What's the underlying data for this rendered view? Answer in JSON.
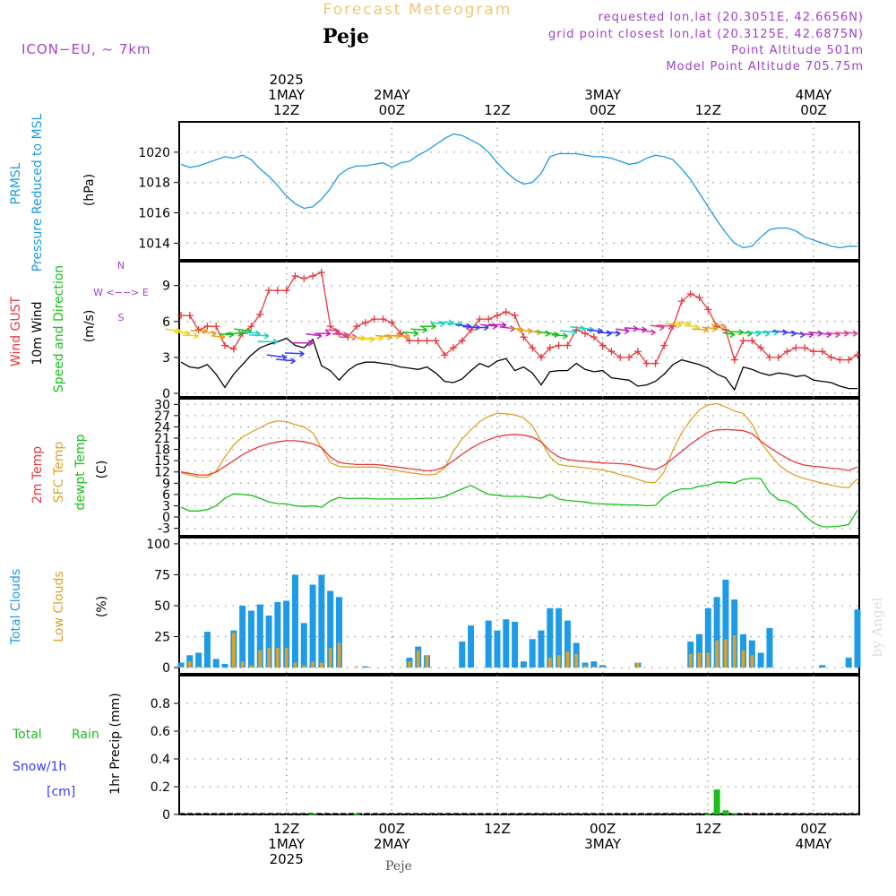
{
  "header": {
    "title": "Forecast Meteogram",
    "location": "Peje",
    "model": "ICON−EU, ~ 7km",
    "requested": "requested lon,lat (20.3051E, 42.6656N)",
    "grid_point": "grid point closest lon,lat (20.3125E, 42.6875N)",
    "point_altitude": "Point Altitude 501m",
    "model_altitude": "Model Point Altitude 705.75m",
    "footer_location": "Peje",
    "watermark": "by Angel"
  },
  "colors": {
    "pressure": "#1e9be6",
    "gust": "#e8383c",
    "wind": "#000000",
    "temp2m": "#e8383c",
    "sfc": "#e0a028",
    "dewpt": "#18c018",
    "total_clouds": "#1e9be6",
    "low_clouds": "#e0a028",
    "rain": "#18c018",
    "snow": "#3a3aff",
    "header_purple": "#a040d0",
    "header_orange": "#f0c870"
  },
  "time_axis": {
    "top_ticks": [
      {
        "hour": 12,
        "lines": [
          "2025",
          "1MAY",
          "12Z"
        ]
      },
      {
        "hour": 24,
        "lines": [
          "2MAY",
          "00Z"
        ]
      },
      {
        "hour": 36,
        "lines": [
          "12Z"
        ]
      },
      {
        "hour": 48,
        "lines": [
          "3MAY",
          "00Z"
        ]
      },
      {
        "hour": 60,
        "lines": [
          "12Z"
        ]
      },
      {
        "hour": 72,
        "lines": [
          "4MAY",
          "00Z"
        ]
      }
    ],
    "bottom_ticks": [
      {
        "hour": 12,
        "lines": [
          "12Z",
          "1MAY",
          "2025"
        ]
      },
      {
        "hour": 24,
        "lines": [
          "00Z",
          "2MAY"
        ]
      },
      {
        "hour": 36,
        "lines": [
          "12Z"
        ]
      },
      {
        "hour": 48,
        "lines": [
          "00Z",
          "3MAY"
        ]
      },
      {
        "hour": 60,
        "lines": [
          "12Z"
        ]
      },
      {
        "hour": 72,
        "lines": [
          "00Z",
          "4MAY"
        ]
      }
    ]
  },
  "panels": {
    "pressure": {
      "labels": [
        "PRMSL",
        "Pressure Reduced to MSL",
        "(hPa)"
      ],
      "ticks": [
        1014,
        1016,
        1018,
        1020
      ],
      "range": [
        1012.9,
        1022.0
      ]
    },
    "wind": {
      "labels": [
        "Wind GUST",
        "10m Wind",
        "Speed and Direction",
        "(m/s)"
      ],
      "compass": [
        "N",
        "W <−−> E",
        "S"
      ],
      "ticks": [
        0,
        3,
        6,
        9
      ],
      "range": [
        -0.3,
        11.0
      ]
    },
    "temp": {
      "labels": [
        "2m Temp",
        "SFC Temp",
        "dewpt Temp",
        "(C)"
      ],
      "ticks": [
        -3,
        0,
        3,
        6,
        9,
        12,
        15,
        18,
        21,
        24,
        27,
        30
      ],
      "range": [
        -5,
        31.5
      ]
    },
    "clouds": {
      "labels": [
        "Total Clouds",
        "Low Clouds",
        "(%)"
      ],
      "ticks": [
        0,
        25,
        50,
        75,
        100
      ],
      "range": [
        -5,
        105
      ]
    },
    "precip": {
      "labels": [
        "Total",
        "Rain",
        "Snow/1h",
        "[cm]",
        "1hr Precip (mm)"
      ],
      "ticks": [
        "0",
        "0.2",
        "0.4",
        "0.6",
        "0.8"
      ],
      "range": [
        0,
        1.0
      ]
    }
  },
  "chart_data": [
    {
      "type": "line",
      "title": "PRMSL Pressure Reduced to MSL",
      "ylabel": "hPa",
      "x_hours": [
        0,
        1,
        2,
        3,
        4,
        5,
        6,
        7,
        8,
        9,
        10,
        11,
        12,
        13,
        14,
        15,
        16,
        17,
        18,
        19,
        20,
        21,
        22,
        23,
        24,
        25,
        26,
        27,
        28,
        29,
        30,
        31,
        32,
        33,
        34,
        35,
        36,
        37,
        38,
        39,
        40,
        41,
        42,
        43,
        44,
        45,
        46,
        47,
        48,
        49,
        50,
        51,
        52,
        53,
        54,
        55,
        56,
        57,
        58,
        59,
        60,
        61,
        62,
        63,
        64,
        65,
        66,
        67,
        68,
        69,
        70,
        71,
        72,
        73,
        74,
        75,
        76,
        77
      ],
      "values": [
        1019.2,
        1019.0,
        1019.1,
        1019.3,
        1019.5,
        1019.7,
        1019.6,
        1019.8,
        1019.5,
        1018.9,
        1018.4,
        1017.8,
        1017.1,
        1016.6,
        1016.3,
        1016.4,
        1016.9,
        1017.6,
        1018.5,
        1018.9,
        1019.1,
        1019.1,
        1019.2,
        1019.3,
        1019.0,
        1019.3,
        1019.4,
        1019.8,
        1020.1,
        1020.5,
        1020.9,
        1021.2,
        1021.1,
        1020.8,
        1020.5,
        1020.0,
        1019.3,
        1018.7,
        1018.2,
        1017.9,
        1018.0,
        1018.6,
        1019.7,
        1019.9,
        1019.9,
        1019.9,
        1019.8,
        1019.7,
        1019.7,
        1019.6,
        1019.4,
        1019.2,
        1019.3,
        1019.6,
        1019.8,
        1019.7,
        1019.5,
        1018.9,
        1018.2,
        1017.3,
        1016.4,
        1015.5,
        1014.7,
        1014.0,
        1013.7,
        1013.8,
        1014.4,
        1014.9,
        1015.0,
        1015.0,
        1014.8,
        1014.4,
        1014.2,
        1014.0,
        1013.8,
        1013.7,
        1013.8,
        1013.8
      ]
    },
    {
      "type": "line",
      "title": "Wind GUST / 10m Wind Speed",
      "ylabel": "m/s",
      "x_hours": [
        0,
        1,
        2,
        3,
        4,
        5,
        6,
        7,
        8,
        9,
        10,
        11,
        12,
        13,
        14,
        15,
        16,
        17,
        18,
        19,
        20,
        21,
        22,
        23,
        24,
        25,
        26,
        27,
        28,
        29,
        30,
        31,
        32,
        33,
        34,
        35,
        36,
        37,
        38,
        39,
        40,
        41,
        42,
        43,
        44,
        45,
        46,
        47,
        48,
        49,
        50,
        51,
        52,
        53,
        54,
        55,
        56,
        57,
        58,
        59,
        60,
        61,
        62,
        63,
        64,
        65,
        66,
        67,
        68,
        69,
        70,
        71,
        72,
        73,
        74,
        75,
        76,
        77
      ],
      "series": [
        {
          "name": "Wind GUST",
          "values": [
            6.5,
            6.5,
            5.3,
            5.6,
            5.6,
            4.0,
            3.7,
            5.0,
            5.6,
            6.6,
            8.6,
            8.6,
            8.6,
            9.8,
            9.6,
            9.8,
            10.1,
            5.6,
            5.0,
            4.7,
            5.6,
            5.9,
            6.2,
            6.2,
            5.9,
            5.0,
            4.4,
            4.4,
            4.4,
            4.4,
            3.2,
            3.8,
            4.4,
            5.3,
            6.2,
            6.2,
            6.5,
            6.8,
            6.5,
            4.7,
            3.8,
            3.0,
            3.8,
            4.0,
            4.0,
            5.3,
            5.0,
            4.7,
            4.0,
            3.5,
            3.0,
            3.0,
            3.5,
            2.5,
            2.5,
            4.0,
            5.6,
            7.7,
            8.3,
            8.0,
            7.0,
            5.6,
            5.3,
            2.8,
            4.4,
            4.4,
            3.8,
            3.0,
            3.0,
            3.5,
            3.8,
            3.8,
            3.5,
            3.5,
            3.0,
            2.8,
            2.8,
            3.2
          ]
        },
        {
          "name": "10m Wind",
          "values": [
            2.6,
            2.2,
            2.1,
            2.4,
            1.6,
            0.5,
            1.6,
            2.4,
            3.2,
            3.8,
            4.1,
            4.3,
            4.6,
            4.0,
            3.8,
            4.5,
            2.3,
            1.9,
            1.1,
            1.9,
            2.4,
            2.6,
            2.6,
            2.5,
            2.4,
            2.2,
            2.1,
            2.0,
            2.2,
            1.7,
            1.0,
            0.9,
            1.2,
            1.9,
            2.5,
            2.2,
            2.7,
            2.9,
            1.9,
            2.2,
            1.7,
            0.7,
            1.8,
            1.9,
            1.9,
            2.5,
            2.0,
            1.8,
            1.9,
            1.3,
            1.2,
            1.1,
            0.6,
            0.7,
            1.0,
            1.6,
            2.4,
            2.8,
            2.6,
            2.4,
            2.1,
            1.6,
            1.3,
            0.3,
            2.2,
            2.0,
            1.7,
            1.5,
            1.7,
            1.6,
            1.4,
            1.5,
            1.1,
            1.0,
            0.9,
            0.6,
            0.4,
            0.4
          ]
        }
      ]
    },
    {
      "type": "line",
      "title": "2m Temp / SFC Temp / dewpt Temp",
      "ylabel": "C",
      "x_hours": [
        0,
        1,
        2,
        3,
        4,
        5,
        6,
        7,
        8,
        9,
        10,
        11,
        12,
        13,
        14,
        15,
        16,
        17,
        18,
        19,
        20,
        21,
        22,
        23,
        24,
        25,
        26,
        27,
        28,
        29,
        30,
        31,
        32,
        33,
        34,
        35,
        36,
        37,
        38,
        39,
        40,
        41,
        42,
        43,
        44,
        45,
        46,
        47,
        48,
        49,
        50,
        51,
        52,
        53,
        54,
        55,
        56,
        57,
        58,
        59,
        60,
        61,
        62,
        63,
        64,
        65,
        66,
        67,
        68,
        69,
        70,
        71,
        72,
        73,
        74,
        75,
        76,
        77
      ],
      "series": [
        {
          "name": "2m Temp",
          "values": [
            12.0,
            11.6,
            11.2,
            11.2,
            12.0,
            13.5,
            15.0,
            16.6,
            17.8,
            18.8,
            19.5,
            20.0,
            20.3,
            20.3,
            20.0,
            19.5,
            18.5,
            16.0,
            14.5,
            14.2,
            14.0,
            14.0,
            14.0,
            13.8,
            13.5,
            13.2,
            12.9,
            12.6,
            12.3,
            12.5,
            13.4,
            15.0,
            16.7,
            18.3,
            19.6,
            20.6,
            21.4,
            21.8,
            22.0,
            21.8,
            21.3,
            20.0,
            17.6,
            16.0,
            15.3,
            15.0,
            14.8,
            14.6,
            14.4,
            14.3,
            14.2,
            14.0,
            13.5,
            13.0,
            12.6,
            13.8,
            15.6,
            17.5,
            19.4,
            21.0,
            22.6,
            23.2,
            23.3,
            23.2,
            23.0,
            22.2,
            20.2,
            18.5,
            17.0,
            15.6,
            14.5,
            13.8,
            13.5,
            13.3,
            13.0,
            12.8,
            12.4,
            13.3
          ]
        },
        {
          "name": "SFC Temp",
          "values": [
            11.8,
            11.2,
            10.6,
            10.6,
            12.2,
            16.0,
            19.2,
            21.3,
            22.6,
            23.8,
            25.0,
            25.6,
            25.4,
            24.6,
            24.0,
            22.4,
            18.3,
            14.5,
            13.5,
            13.3,
            13.3,
            13.3,
            13.3,
            13.0,
            12.6,
            12.2,
            11.8,
            11.5,
            11.2,
            11.4,
            13.0,
            17.5,
            20.8,
            23.2,
            25.4,
            26.8,
            27.6,
            27.5,
            27.2,
            26.4,
            24.3,
            20.2,
            16.0,
            14.0,
            13.6,
            13.4,
            13.1,
            12.8,
            12.5,
            12.0,
            11.3,
            10.8,
            10.0,
            9.3,
            9.2,
            12.0,
            17.8,
            22.4,
            25.8,
            28.5,
            29.9,
            30.2,
            29.3,
            28.2,
            27.6,
            24.8,
            20.0,
            16.8,
            14.0,
            12.2,
            11.0,
            10.2,
            9.6,
            9.0,
            8.5,
            8.0,
            7.8,
            10.2
          ]
        },
        {
          "name": "dewpt Temp",
          "values": [
            2.6,
            1.6,
            1.6,
            2.0,
            3.0,
            5.0,
            6.2,
            6.0,
            5.8,
            5.0,
            4.0,
            3.6,
            3.5,
            3.0,
            2.8,
            3.0,
            2.6,
            4.3,
            5.2,
            4.9,
            5.0,
            5.0,
            4.8,
            4.8,
            4.8,
            4.8,
            4.8,
            4.9,
            5.0,
            5.0,
            5.4,
            6.5,
            7.5,
            8.4,
            7.2,
            6.0,
            5.8,
            5.5,
            5.5,
            5.5,
            5.2,
            5.0,
            6.0,
            4.8,
            4.4,
            4.2,
            4.0,
            3.6,
            3.5,
            3.4,
            3.3,
            3.2,
            3.2,
            3.0,
            3.1,
            5.4,
            6.8,
            7.5,
            7.5,
            8.2,
            8.5,
            9.3,
            9.3,
            9.0,
            10.0,
            10.3,
            10.2,
            6.5,
            4.6,
            4.2,
            2.8,
            0.4,
            -1.6,
            -2.6,
            -2.6,
            -2.4,
            -2.0,
            1.8
          ]
        }
      ]
    },
    {
      "type": "bar",
      "title": "Total Clouds / Low Clouds",
      "ylabel": "%",
      "x_hours": [
        0,
        1,
        2,
        3,
        4,
        5,
        6,
        7,
        8,
        9,
        10,
        11,
        12,
        13,
        14,
        15,
        16,
        17,
        18,
        19,
        20,
        21,
        22,
        23,
        24,
        25,
        26,
        27,
        28,
        29,
        30,
        31,
        32,
        33,
        34,
        35,
        36,
        37,
        38,
        39,
        40,
        41,
        42,
        43,
        44,
        45,
        46,
        47,
        48,
        49,
        50,
        51,
        52,
        53,
        54,
        55,
        56,
        57,
        58,
        59,
        60,
        61,
        62,
        63,
        64,
        65,
        66,
        67,
        68,
        69,
        70,
        71,
        72,
        73,
        74,
        75,
        76,
        77
      ],
      "series": [
        {
          "name": "Total Clouds",
          "values": [
            4,
            10,
            12,
            29,
            7,
            3,
            30,
            50,
            46,
            51,
            42,
            53,
            54,
            75,
            36,
            67,
            75,
            62,
            57,
            0,
            0,
            1,
            0,
            0,
            0,
            0,
            8,
            17,
            10,
            0,
            0,
            0,
            21,
            34,
            0,
            38,
            30,
            39,
            37,
            5,
            23,
            30,
            48,
            48,
            38,
            20,
            4,
            5,
            2,
            0,
            0,
            0,
            4,
            0,
            0,
            0,
            0,
            0,
            21,
            27,
            48,
            57,
            71,
            55,
            27,
            22,
            12,
            32,
            0,
            0,
            0,
            0,
            0,
            2,
            0,
            0,
            8,
            47
          ]
        },
        {
          "name": "Low Clouds",
          "values": [
            1,
            5,
            1,
            0,
            0,
            0,
            28,
            5,
            2,
            14,
            16,
            16,
            16,
            4,
            2,
            5,
            4,
            16,
            20,
            0,
            1,
            0,
            0,
            0,
            0,
            0,
            5,
            14,
            10,
            0,
            0,
            0,
            0,
            0,
            0,
            0,
            0,
            0,
            0,
            0,
            0,
            0,
            8,
            10,
            13,
            11,
            2,
            1,
            1,
            0,
            0,
            0,
            4,
            0,
            0,
            0,
            0,
            0,
            11,
            12,
            12,
            22,
            23,
            26,
            14,
            10,
            0,
            0,
            0,
            0,
            0,
            0,
            0,
            0,
            0,
            0,
            0,
            0
          ]
        }
      ]
    },
    {
      "type": "bar",
      "title": "1hr Precip",
      "ylabel": "mm",
      "x_hours": [
        15,
        20,
        60,
        61,
        62,
        63
      ],
      "series": [
        {
          "name": "Total Rain",
          "values": [
            0.005,
            0.005,
            0.005,
            0.18,
            0.03,
            0.01
          ]
        },
        {
          "name": "Snow/1h",
          "values": [
            0,
            0,
            0,
            0,
            0,
            0
          ]
        }
      ]
    }
  ]
}
